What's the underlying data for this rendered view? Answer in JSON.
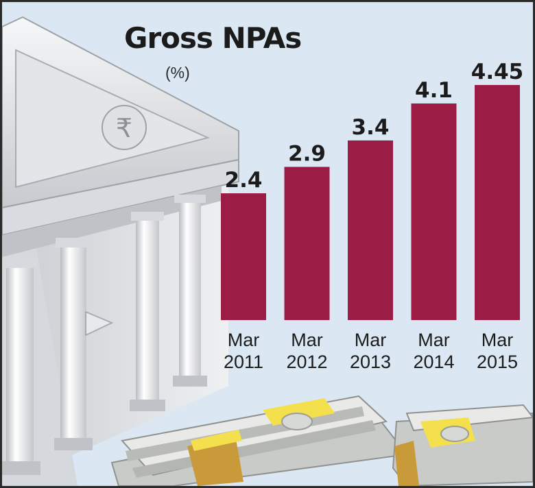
{
  "chart_data": {
    "type": "bar",
    "title": "Gross NPAs",
    "subtitle": "(%)",
    "categories": [
      [
        "Mar",
        "2011"
      ],
      [
        "Mar",
        "2012"
      ],
      [
        "Mar",
        "2013"
      ],
      [
        "Mar",
        "2014"
      ],
      [
        "Mar",
        "2015"
      ]
    ],
    "values": [
      2.4,
      2.9,
      3.4,
      4.1,
      4.45
    ],
    "value_labels": [
      "2.4",
      "2.9",
      "3.4",
      "4.1",
      "4.45"
    ],
    "xlabel": "",
    "ylabel": "",
    "ylim": [
      0,
      4.45
    ],
    "grid": false,
    "legend": "none",
    "bar_color": "#9b1c45"
  },
  "decor": {
    "rupee_symbol": "₹",
    "illustration": "bank-building-and-cash-bundles"
  }
}
